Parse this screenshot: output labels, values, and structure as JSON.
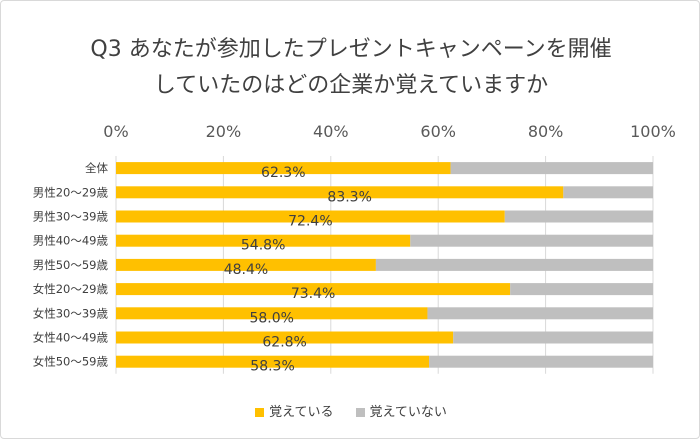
{
  "chart_data": {
    "type": "bar",
    "stacked": true,
    "orientation": "horizontal",
    "title_lines": [
      "Q3 あなたが参加したプレゼントキャンペーンを開催",
      "していたのはどの企業か覚えていますか"
    ],
    "categories": [
      "全体",
      "男性20～29歳",
      "男性30～39歳",
      "男性40～49歳",
      "男性50～59歳",
      "女性20～29歳",
      "女性30～39歳",
      "女性40～49歳",
      "女性50～59歳"
    ],
    "series": [
      {
        "name": "覚えている",
        "color": "#FFC000",
        "values": [
          62.3,
          83.3,
          72.4,
          54.8,
          48.4,
          73.4,
          58.0,
          62.8,
          58.3
        ]
      },
      {
        "name": "覚えていない",
        "color": "#BFBFBF",
        "values": [
          37.7,
          16.7,
          27.6,
          45.2,
          51.6,
          26.6,
          42.0,
          37.2,
          41.7
        ]
      }
    ],
    "data_labels": [
      "62.3%",
      "83.3%",
      "72.4%",
      "54.8%",
      "48.4%",
      "73.4%",
      "58.0%",
      "62.8%",
      "58.3%"
    ],
    "x_ticks": [
      "0%",
      "20%",
      "40%",
      "60%",
      "80%",
      "100%"
    ],
    "xlim": [
      0,
      100
    ],
    "grid": true,
    "legend_position": "bottom"
  }
}
